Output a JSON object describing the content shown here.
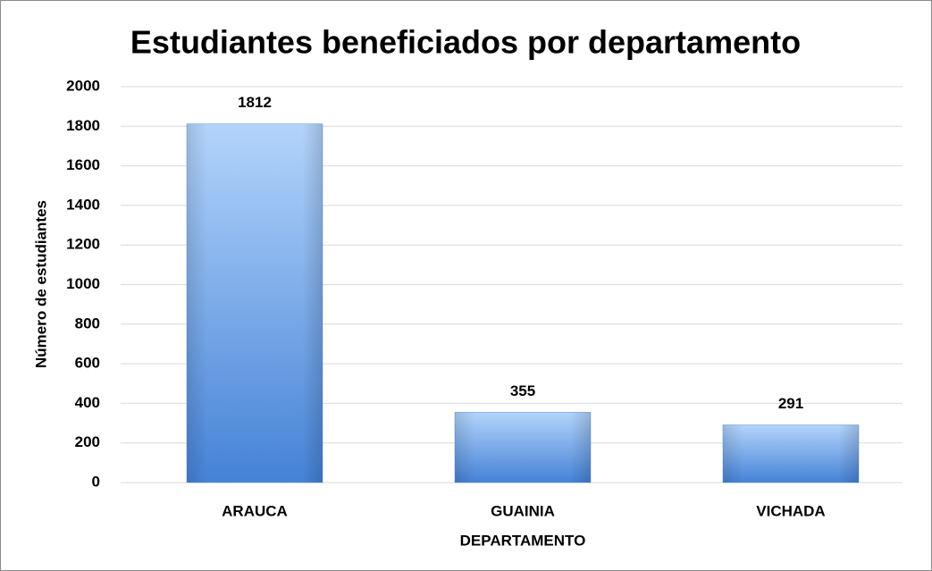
{
  "chart_data": {
    "type": "bar",
    "title": "Estudiantes beneficiados por departamento",
    "x_label": "DEPARTAMENTO",
    "y_label": "Número de estudiantes",
    "categories": [
      "ARAUCA",
      "GUAINIA",
      "VICHADA"
    ],
    "values": [
      1812,
      355,
      291
    ],
    "color": "#6aa3ea",
    "ylim": [
      0,
      2000
    ],
    "yticks": [
      0,
      200,
      400,
      600,
      800,
      1000,
      1200,
      1400,
      1600,
      1800,
      2000
    ],
    "grid": true
  }
}
